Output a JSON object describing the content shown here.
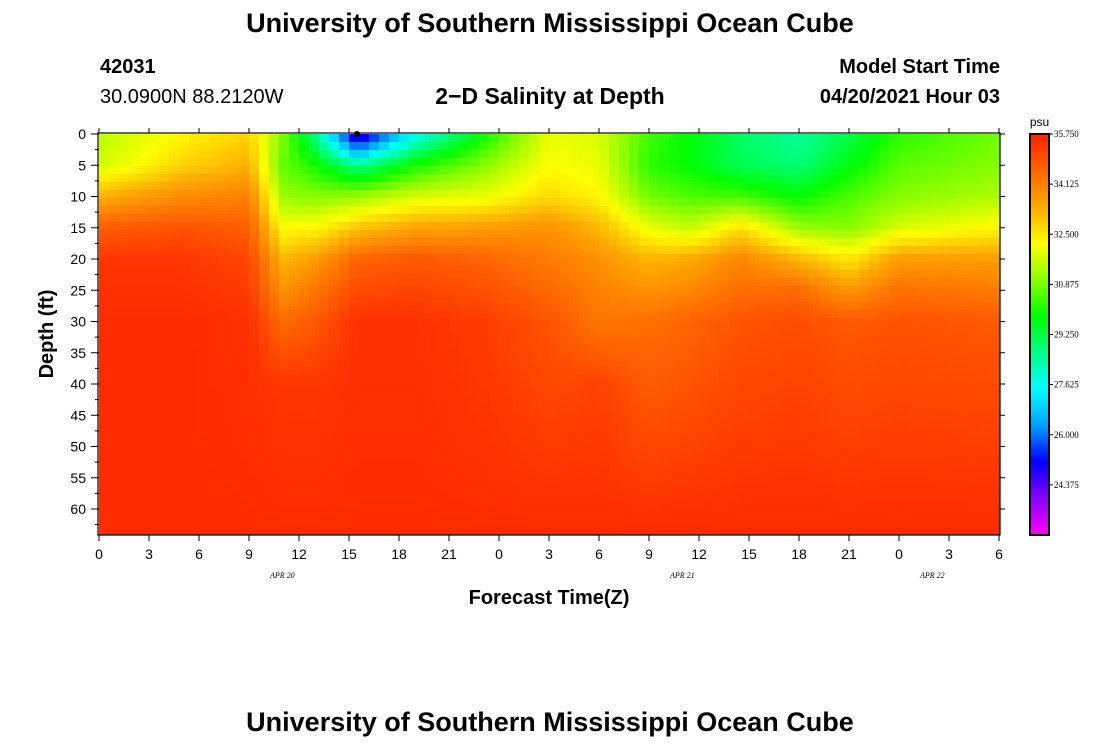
{
  "header": {
    "title": "University of Southern Mississippi Ocean Cube",
    "station_id": "42031",
    "coordinates": "30.0900N  88.2120W",
    "plot_title": "2−D Salinity at Depth",
    "model_start_label": "Model Start Time",
    "model_start_value": "04/20/2021 Hour 03"
  },
  "footer": {
    "title": "University of Southern Mississippi Ocean Cube"
  },
  "chart_data": {
    "type": "heatmap",
    "title": "2−D Salinity at Depth",
    "xlabel": "Forecast Time(Z)",
    "ylabel": "Depth (ft)",
    "x_tick_labels": [
      "0",
      "3",
      "6",
      "9",
      "12",
      "15",
      "18",
      "21",
      "0",
      "3",
      "6",
      "9",
      "12",
      "15",
      "18",
      "21",
      "0",
      "3",
      "6"
    ],
    "x_hours_from_start": [
      0,
      3,
      6,
      9,
      12,
      15,
      18,
      21,
      24,
      27,
      30,
      33,
      36,
      39,
      42,
      45,
      48,
      51,
      54
    ],
    "date_labels": [
      {
        "text": "APR 20",
        "hour": 11
      },
      {
        "text": "APR 21",
        "hour": 35
      },
      {
        "text": "APR 22",
        "hour": 50
      }
    ],
    "xlim": [
      0,
      54
    ],
    "y_ticks": [
      0,
      5,
      10,
      15,
      20,
      25,
      30,
      35,
      40,
      45,
      50,
      55,
      60
    ],
    "ylim": [
      0,
      64
    ],
    "colorbar": {
      "unit": "psu",
      "min": 22.75,
      "max": 35.75,
      "tick_values": [
        35.75,
        34.125,
        32.5,
        30.875,
        29.25,
        27.625,
        26.0,
        24.375
      ],
      "tick_labels": [
        "35.750",
        "34.125",
        "32.500",
        "30.875",
        "29.250",
        "27.625",
        "26.000",
        "24.375"
      ],
      "colors": [
        "#ff00ff",
        "#8800ff",
        "#0000ff",
        "#00a0ff",
        "#00ffff",
        "#00ff88",
        "#00ff00",
        "#88ff00",
        "#ffff00",
        "#ffaa00",
        "#ff6600",
        "#ff2200"
      ]
    },
    "profile_columns": [
      {
        "hour": 0,
        "depths": [
          0,
          5,
          10,
          15,
          20,
          30,
          64
        ],
        "salinity": [
          31.5,
          31.7,
          33.3,
          34.7,
          35.4,
          35.6,
          35.6
        ]
      },
      {
        "hour": 5,
        "depths": [
          0,
          5,
          10,
          15,
          20,
          30,
          64
        ],
        "salinity": [
          32.3,
          32.8,
          33.9,
          34.9,
          35.4,
          35.6,
          35.6
        ]
      },
      {
        "hour": 9,
        "depths": [
          0,
          5,
          10,
          15,
          20,
          30,
          64
        ],
        "salinity": [
          32.8,
          33.3,
          34.1,
          34.7,
          35.1,
          35.5,
          35.6
        ]
      },
      {
        "hour": 11,
        "depths": [
          0,
          5,
          10,
          15,
          20,
          25,
          30,
          40,
          64
        ],
        "salinity": [
          31.0,
          30.7,
          31.2,
          32.2,
          33.2,
          33.8,
          34.5,
          35.4,
          35.6
        ]
      },
      {
        "hour": 13,
        "depths": [
          0,
          5,
          10,
          15,
          20,
          25,
          30,
          40,
          64
        ],
        "salinity": [
          28.6,
          30.0,
          31.0,
          32.3,
          33.6,
          34.3,
          34.8,
          35.4,
          35.6
        ]
      },
      {
        "hour": 15.5,
        "depths": [
          0,
          3,
          5,
          10,
          15,
          20,
          30,
          64
        ],
        "salinity": [
          24.3,
          26.5,
          28.6,
          31.2,
          33.0,
          34.6,
          35.5,
          35.6
        ]
      },
      {
        "hour": 19,
        "depths": [
          0,
          5,
          10,
          15,
          20,
          30,
          64
        ],
        "salinity": [
          27.5,
          30.0,
          31.8,
          33.5,
          34.8,
          35.5,
          35.6
        ]
      },
      {
        "hour": 23,
        "depths": [
          0,
          5,
          10,
          15,
          20,
          30,
          64
        ],
        "salinity": [
          29.8,
          31.0,
          32.0,
          33.6,
          34.6,
          35.3,
          35.6
        ]
      },
      {
        "hour": 27,
        "depths": [
          0,
          5,
          10,
          15,
          20,
          30,
          64
        ],
        "salinity": [
          32.0,
          32.2,
          32.7,
          33.8,
          34.2,
          34.9,
          35.6
        ]
      },
      {
        "hour": 30,
        "depths": [
          0,
          5,
          10,
          15,
          20,
          25,
          30,
          35,
          40,
          64
        ],
        "salinity": [
          31.8,
          32.0,
          32.3,
          33.2,
          33.8,
          34.1,
          34.3,
          34.7,
          35.2,
          35.6
        ]
      },
      {
        "hour": 33,
        "depths": [
          0,
          5,
          10,
          15,
          20,
          30,
          64
        ],
        "salinity": [
          30.4,
          30.2,
          30.8,
          32.0,
          33.2,
          34.4,
          35.6
        ]
      },
      {
        "hour": 35.5,
        "depths": [
          0,
          5,
          10,
          15,
          20,
          30,
          64
        ],
        "salinity": [
          29.8,
          29.8,
          30.5,
          31.6,
          33.4,
          34.6,
          35.6
        ]
      },
      {
        "hour": 38.5,
        "depths": [
          0,
          5,
          10,
          15,
          20,
          30,
          64
        ],
        "salinity": [
          29.0,
          29.1,
          30.4,
          32.6,
          34.0,
          34.9,
          35.6
        ]
      },
      {
        "hour": 42,
        "depths": [
          0,
          5,
          10,
          15,
          20,
          25,
          30,
          64
        ],
        "salinity": [
          28.5,
          28.8,
          29.8,
          31.2,
          33.2,
          34.5,
          35.0,
          35.6
        ]
      },
      {
        "hour": 45,
        "depths": [
          0,
          5,
          10,
          15,
          20,
          25,
          30,
          64
        ],
        "salinity": [
          29.2,
          29.7,
          30.5,
          31.0,
          32.5,
          33.7,
          34.8,
          35.6
        ]
      },
      {
        "hour": 48,
        "depths": [
          0,
          5,
          10,
          15,
          20,
          25,
          30,
          64
        ],
        "salinity": [
          30.2,
          30.6,
          31.0,
          31.8,
          33.6,
          34.4,
          34.9,
          35.6
        ]
      },
      {
        "hour": 54,
        "depths": [
          0,
          5,
          10,
          15,
          20,
          25,
          30,
          64
        ],
        "salinity": [
          30.8,
          31.0,
          31.4,
          32.3,
          33.6,
          34.2,
          34.8,
          35.6
        ]
      }
    ]
  }
}
